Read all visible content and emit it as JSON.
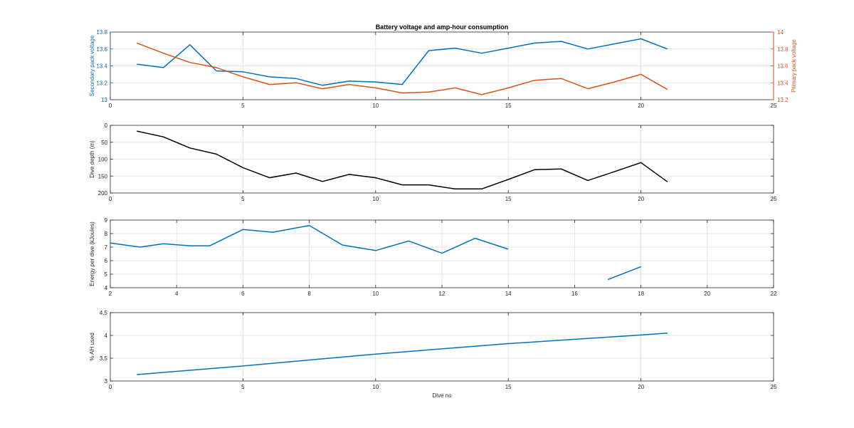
{
  "title": "Battery voltage and amp-hour consumption",
  "colors": {
    "blue": "#0072bd",
    "orange": "#d95319",
    "black": "#000000",
    "axis": "#262626",
    "grid": "#dcdcdc"
  },
  "chart_data": [
    {
      "type": "line",
      "title": "Battery voltage and amp-hour consumption",
      "xlim": [
        0,
        25
      ],
      "xticks": [
        0,
        5,
        10,
        15,
        20,
        25
      ],
      "grid": true,
      "axes": {
        "left": {
          "label": "Secondary pack voltage",
          "ylim": [
            13.0,
            13.8
          ],
          "ticks": [
            13,
            13.2,
            13.4,
            13.6,
            13.8
          ],
          "color": "#0072bd"
        },
        "right": {
          "label": "Primary pack voltage",
          "ylim": [
            13.2,
            14.0
          ],
          "ticks": [
            13.2,
            13.4,
            13.6,
            13.8,
            14
          ],
          "color": "#d95319"
        }
      },
      "series": [
        {
          "axis": "left",
          "color": "#0072bd",
          "x": [
            1,
            2,
            3,
            4,
            5,
            6,
            7,
            8,
            9,
            10,
            11,
            12,
            13,
            14,
            15,
            16,
            17,
            18,
            19,
            20,
            21
          ],
          "values": [
            13.42,
            13.38,
            13.65,
            13.34,
            13.33,
            13.27,
            13.25,
            13.17,
            13.22,
            13.21,
            13.18,
            13.58,
            13.61,
            13.55,
            13.61,
            13.67,
            13.69,
            13.6,
            13.66,
            13.72,
            13.6
          ]
        },
        {
          "axis": "right",
          "color": "#d95319",
          "x": [
            1,
            2,
            3,
            4,
            5,
            6,
            7,
            8,
            9,
            10,
            11,
            12,
            13,
            14,
            15,
            16,
            17,
            18,
            19,
            20,
            21
          ],
          "values": [
            13.87,
            13.75,
            13.64,
            13.58,
            13.47,
            13.38,
            13.4,
            13.33,
            13.38,
            13.34,
            13.28,
            13.29,
            13.34,
            13.26,
            13.34,
            13.43,
            13.45,
            13.33,
            13.41,
            13.5,
            13.32
          ]
        }
      ]
    },
    {
      "type": "line",
      "xlim": [
        0,
        25
      ],
      "xticks": [
        0,
        5,
        10,
        15,
        20,
        25
      ],
      "ylim": [
        0,
        200
      ],
      "yticks": [
        0,
        50,
        100,
        150,
        200
      ],
      "yreverse": true,
      "ylabel": "Dive depth (m)",
      "grid": true,
      "series": [
        {
          "color": "#000000",
          "x": [
            1,
            2,
            3,
            4,
            5,
            6,
            7,
            8,
            9,
            10,
            11,
            12,
            13,
            14,
            15,
            16,
            17,
            18,
            19,
            20,
            21
          ],
          "values": [
            17,
            34,
            67,
            85,
            125,
            155,
            141,
            166,
            145,
            155,
            176,
            176,
            188,
            188,
            160,
            131,
            129,
            163,
            137,
            110,
            167
          ]
        }
      ]
    },
    {
      "type": "line",
      "xlim": [
        2,
        22
      ],
      "xticks": [
        2,
        4,
        6,
        8,
        10,
        12,
        14,
        16,
        18,
        20,
        22
      ],
      "ylim": [
        4,
        9
      ],
      "yticks": [
        4,
        5,
        6,
        7,
        8,
        9
      ],
      "ylabel": "Energy per dive (kJoules)",
      "grid": true,
      "series": [
        {
          "color": "#0072bd",
          "segments": [
            {
              "x": [
                2,
                2.9,
                3.6,
                4.4,
                5,
                6,
                6.9,
                8,
                9,
                10,
                11,
                12,
                13,
                14
              ],
              "values": [
                7.3,
                7.0,
                7.25,
                7.1,
                7.1,
                8.3,
                8.1,
                8.6,
                7.15,
                6.75,
                7.45,
                6.55,
                7.65,
                6.85
              ]
            },
            {
              "x": [
                17,
                18
              ],
              "values": [
                4.6,
                5.55
              ]
            }
          ]
        }
      ]
    },
    {
      "type": "line",
      "xlim": [
        0,
        25
      ],
      "xticks": [
        0,
        5,
        10,
        15,
        20,
        25
      ],
      "ylim": [
        3,
        4.5
      ],
      "yticks": [
        3,
        3.5,
        4,
        4.5
      ],
      "ylabel": "% AH used",
      "xlabel": "Dive no",
      "grid": true,
      "series": [
        {
          "color": "#0072bd",
          "x": [
            1,
            5,
            10,
            15,
            20,
            21
          ],
          "values": [
            3.14,
            3.33,
            3.59,
            3.82,
            4.01,
            4.05
          ]
        }
      ]
    }
  ]
}
